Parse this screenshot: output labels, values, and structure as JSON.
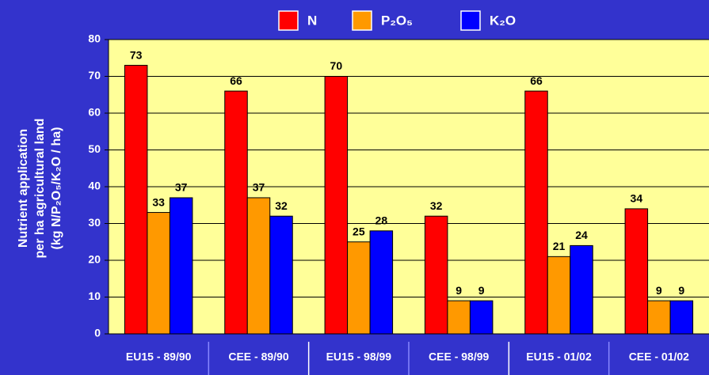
{
  "chart_data": {
    "type": "bar",
    "ylabel": [
      "Nutrient application",
      "per ha agricultural land",
      "(kg N/P₂O₅/K₂O / ha)"
    ],
    "categories": [
      "EU15 - 89/90",
      "CEE - 89/90",
      "EU15 - 98/99",
      "CEE - 98/99",
      "EU15 - 01/02",
      "CEE - 01/02"
    ],
    "series": [
      {
        "name": "N",
        "color": "#ff0000",
        "values": [
          73,
          66,
          70,
          32,
          66,
          34
        ]
      },
      {
        "name": "P₂O₅",
        "color": "#ff9900",
        "values": [
          33,
          37,
          25,
          9,
          21,
          9
        ]
      },
      {
        "name": "K₂O",
        "color": "#0000ff",
        "values": [
          37,
          32,
          28,
          9,
          24,
          9
        ]
      }
    ],
    "ylim": [
      0,
      80
    ],
    "yticks": [
      0,
      10,
      20,
      30,
      40,
      50,
      60,
      70,
      80
    ],
    "grid": true,
    "legend": "top"
  }
}
